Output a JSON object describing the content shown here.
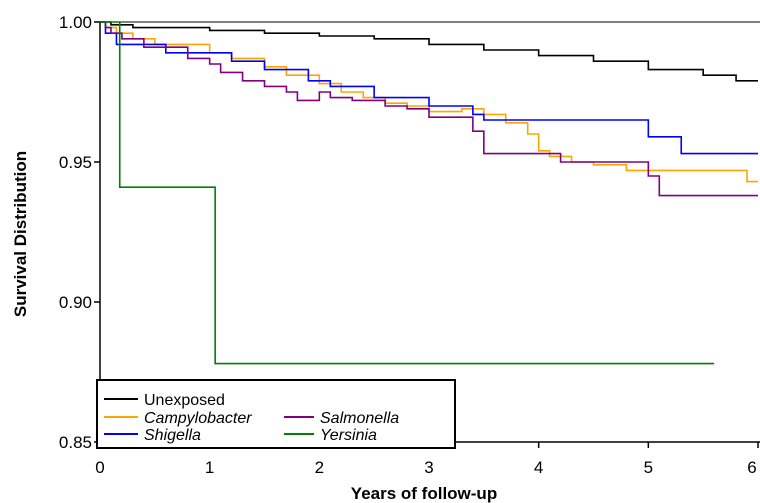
{
  "chart_data": {
    "type": "line",
    "step": true,
    "xlabel": "Years of follow-up",
    "ylabel": "Survival Distribution",
    "xlim": [
      0,
      6
    ],
    "ylim": [
      0.85,
      1.0
    ],
    "x_ticks": [
      "0",
      "1",
      "2",
      "3",
      "4",
      "5",
      "6"
    ],
    "y_ticks": [
      "1.00",
      "0.95",
      "0.90",
      "0.85"
    ],
    "grid": false,
    "legend_position": "bottom-left",
    "series": [
      {
        "name": "Unexposed",
        "italic": false,
        "color": "#000000",
        "x": [
          0,
          0.1,
          0.3,
          0.5,
          1.0,
          1.5,
          2.0,
          2.5,
          3.0,
          3.5,
          4.0,
          4.5,
          5.0,
          5.5,
          5.8,
          6.0
        ],
        "y": [
          1.0,
          0.999,
          0.998,
          0.998,
          0.997,
          0.996,
          0.995,
          0.994,
          0.992,
          0.99,
          0.988,
          0.986,
          0.983,
          0.981,
          0.979,
          0.979
        ]
      },
      {
        "name": "Campylobacter",
        "italic": true,
        "color": "#FFA500",
        "x": [
          0,
          0.05,
          0.15,
          0.3,
          0.5,
          1.0,
          1.2,
          1.5,
          1.7,
          2.0,
          2.2,
          2.4,
          2.6,
          2.8,
          3.0,
          3.3,
          3.5,
          3.7,
          3.9,
          4.0,
          4.1,
          4.3,
          4.5,
          4.8,
          5.0,
          5.3,
          5.5,
          5.9,
          6.0
        ],
        "y": [
          1.0,
          0.998,
          0.996,
          0.994,
          0.992,
          0.989,
          0.987,
          0.984,
          0.981,
          0.978,
          0.975,
          0.973,
          0.971,
          0.97,
          0.968,
          0.969,
          0.967,
          0.964,
          0.96,
          0.954,
          0.952,
          0.95,
          0.949,
          0.947,
          0.947,
          0.947,
          0.947,
          0.943,
          0.943
        ]
      },
      {
        "name": "Shigella",
        "italic": true,
        "color": "#0000FF",
        "x": [
          0,
          0.05,
          0.15,
          0.6,
          0.9,
          1.2,
          1.5,
          1.9,
          2.1,
          2.5,
          2.8,
          3.0,
          3.4,
          3.5,
          4.0,
          4.5,
          5.0,
          5.3,
          6.0
        ],
        "y": [
          1.0,
          0.996,
          0.992,
          0.989,
          0.989,
          0.986,
          0.983,
          0.979,
          0.977,
          0.973,
          0.973,
          0.97,
          0.967,
          0.965,
          0.965,
          0.965,
          0.959,
          0.953,
          0.953
        ]
      },
      {
        "name": "Salmonella",
        "italic": true,
        "color": "#800080",
        "x": [
          0,
          0.05,
          0.1,
          0.2,
          0.4,
          0.8,
          1.0,
          1.1,
          1.3,
          1.5,
          1.7,
          1.8,
          2.0,
          2.1,
          2.3,
          2.6,
          2.8,
          3.0,
          3.2,
          3.4,
          3.5,
          3.7,
          4.0,
          4.2,
          4.5,
          4.8,
          5.0,
          5.1,
          6.0
        ],
        "y": [
          1.0,
          0.998,
          0.996,
          0.994,
          0.991,
          0.987,
          0.985,
          0.982,
          0.979,
          0.977,
          0.975,
          0.972,
          0.975,
          0.973,
          0.972,
          0.97,
          0.969,
          0.966,
          0.966,
          0.961,
          0.953,
          0.953,
          0.953,
          0.95,
          0.95,
          0.95,
          0.945,
          0.938,
          0.938
        ]
      },
      {
        "name": "Yersinia",
        "italic": false,
        "color": "#008000",
        "x": [
          0,
          0.18,
          1.05,
          5.6
        ],
        "y": [
          1.0,
          0.941,
          0.878,
          0.878
        ]
      }
    ]
  }
}
